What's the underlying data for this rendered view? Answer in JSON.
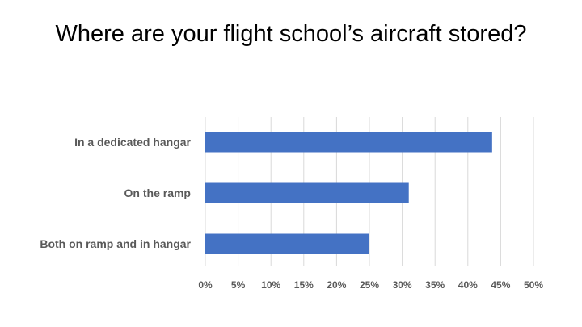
{
  "chart_data": {
    "type": "bar",
    "orientation": "horizontal",
    "title": "Where are your flight school’s aircraft stored?",
    "categories": [
      "In a dedicated hangar",
      "On the ramp",
      "Both on ramp and in hangar"
    ],
    "values": [
      0.437,
      0.31,
      0.25
    ],
    "xlim": [
      0,
      0.5
    ],
    "ticks": [
      "0%",
      "5%",
      "10%",
      "15%",
      "20%",
      "25%",
      "30%",
      "35%",
      "40%",
      "45%",
      "50%"
    ],
    "xlabel": "",
    "ylabel": "",
    "grid": "vertical",
    "legend": "none",
    "bar_color": "#4472C4",
    "grid_color": "#D9D9D9"
  }
}
